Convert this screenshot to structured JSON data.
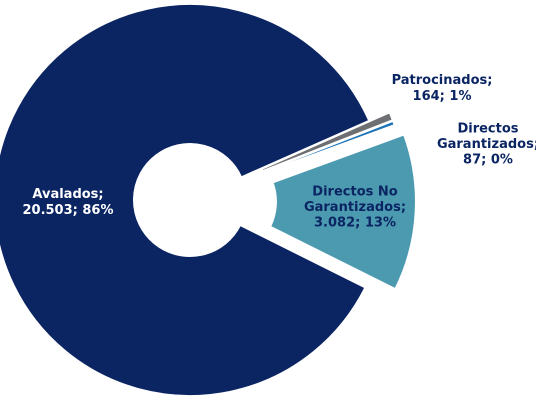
{
  "chart_data": {
    "type": "donut",
    "categories": [
      "Avalados;",
      "Patrocinados;",
      "Directos Garantizados;",
      "Directos No Garantizados;"
    ],
    "values": [
      20503,
      164,
      87,
      3082
    ],
    "value_labels": [
      "20.503; 86%",
      "164; 1%",
      "87; 0%",
      "3.082; 13%"
    ],
    "colors": [
      "#0b2563",
      "#6e6f72",
      "#1b72b5",
      "#4b9ab0"
    ]
  }
}
